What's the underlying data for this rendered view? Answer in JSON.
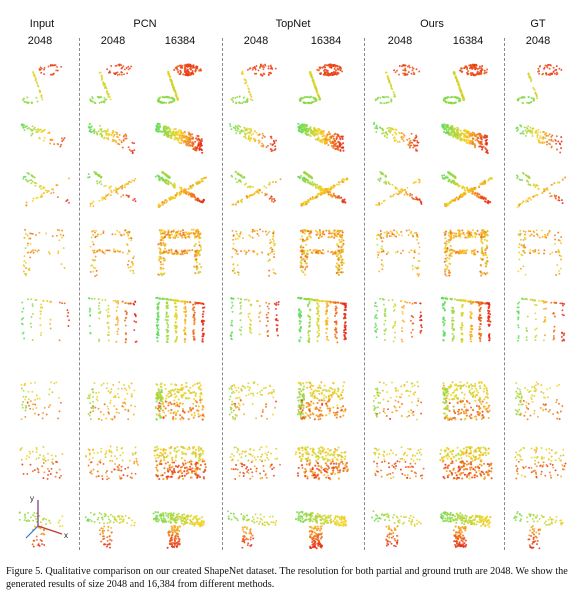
{
  "figure": {
    "group_headers": [
      {
        "id": "input",
        "label": "Input"
      },
      {
        "id": "pcn",
        "label": "PCN"
      },
      {
        "id": "topnet",
        "label": "TopNet"
      },
      {
        "id": "ours",
        "label": "Ours"
      },
      {
        "id": "gt",
        "label": "GT"
      }
    ],
    "resolution_headers": [
      {
        "id": "input-2048",
        "label": "2048"
      },
      {
        "id": "pcn-2048",
        "label": "2048"
      },
      {
        "id": "pcn-16384",
        "label": "16384"
      },
      {
        "id": "topnet-2048",
        "label": "2048"
      },
      {
        "id": "topnet-16384",
        "label": "16384"
      },
      {
        "id": "ours-2048",
        "label": "2048"
      },
      {
        "id": "ours-16384",
        "label": "16384"
      },
      {
        "id": "gt-2048",
        "label": "2048"
      }
    ],
    "rows": [
      {
        "object": "lamp"
      },
      {
        "object": "vessel"
      },
      {
        "object": "airplane"
      },
      {
        "object": "table"
      },
      {
        "object": "lamp-hanging"
      },
      {
        "object": "sofa"
      },
      {
        "object": "sofa-long"
      },
      {
        "object": "vessel-l-shape"
      }
    ],
    "axis_labels": {
      "y": "y",
      "x": "x"
    },
    "colors": {
      "warm": "#e4231a",
      "mid": "#f5a623",
      "cool": "#4cd964",
      "separator": "#8a8a8a"
    },
    "caption": "Figure 5. Qualitative comparison on our created ShapeNet dataset. The resolution for both partial and ground truth are 2048. We show the generated results of size 2048 and 16,384 from different methods."
  }
}
